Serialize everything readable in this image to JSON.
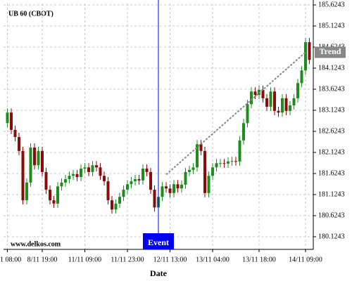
{
  "chart_data": {
    "type": "candlestick",
    "title": "UB 60 (CBOT)",
    "xlabel": "Date",
    "watermark": "www.delkos.com",
    "xlim": [
      -1,
      79
    ],
    "ylim": [
      179.8243,
      185.6576
    ],
    "xticks": [
      {
        "value": 0,
        "label": "1 08:00"
      },
      {
        "value": 9,
        "label": "8/11 19:00"
      },
      {
        "value": 20,
        "label": "11/11 09:00"
      },
      {
        "value": 31,
        "label": "11/11 23:00"
      },
      {
        "value": 42,
        "label": "12/11 13:00"
      },
      {
        "value": 53,
        "label": "13/11 04:00"
      },
      {
        "value": 65,
        "label": "13/11 18:00"
      },
      {
        "value": 77,
        "label": "14/11 09:00"
      }
    ],
    "yticks": [
      180.1243,
      180.6243,
      181.1243,
      181.6243,
      182.1243,
      182.6243,
      183.1243,
      183.6243,
      184.1243,
      184.6243,
      185.1243,
      185.6243
    ],
    "grid": true,
    "up_color": "#1e8c1e",
    "down_color": "#8b0a0a",
    "open": [
      182.82,
      183.07,
      182.66,
      182.49,
      182.16,
      180.99,
      181.41,
      182.24,
      181.82,
      182.16,
      181.66,
      181.24,
      180.99,
      180.91,
      181.32,
      181.41,
      181.49,
      181.57,
      181.61,
      181.54,
      181.74,
      181.77,
      181.66,
      181.82,
      181.77,
      181.57,
      181.44,
      180.99,
      180.77,
      180.91,
      181.07,
      181.24,
      181.37,
      181.44,
      181.49,
      181.46,
      181.74,
      181.66,
      181.24,
      180.82,
      181.07,
      181.32,
      181.27,
      181.16,
      181.37,
      181.27,
      181.36,
      181.66,
      181.71,
      181.77,
      182.32,
      182.16,
      181.16,
      181.57,
      181.77,
      181.87,
      181.87,
      181.86,
      181.91,
      181.92,
      181.91,
      182.41,
      182.82,
      183.27,
      183.57,
      183.49,
      183.61,
      183.41,
      183.21,
      183.57,
      183.11,
      183.07,
      183.41,
      183.11,
      183.24,
      183.41,
      183.77,
      184.07,
      184.74
    ],
    "high": [
      183.17,
      183.17,
      182.76,
      182.59,
      182.26,
      181.51,
      182.34,
      182.34,
      182.26,
      182.26,
      181.76,
      181.34,
      181.09,
      181.42,
      181.51,
      181.59,
      181.67,
      181.71,
      181.71,
      181.84,
      181.87,
      181.87,
      181.92,
      181.92,
      181.87,
      181.67,
      181.54,
      181.09,
      181.01,
      181.17,
      181.34,
      181.47,
      181.54,
      181.59,
      181.59,
      181.84,
      181.84,
      181.76,
      181.34,
      181.17,
      181.42,
      181.42,
      181.37,
      181.47,
      181.47,
      181.46,
      181.76,
      181.81,
      181.87,
      182.42,
      182.42,
      182.26,
      181.67,
      181.87,
      181.97,
      181.97,
      181.97,
      182.01,
      182.02,
      182.02,
      182.51,
      182.92,
      183.37,
      183.67,
      183.67,
      183.71,
      183.71,
      183.51,
      183.67,
      183.67,
      183.21,
      183.51,
      183.51,
      183.34,
      183.51,
      183.87,
      184.17,
      184.84,
      184.84
    ],
    "low": [
      182.72,
      182.56,
      182.39,
      182.06,
      180.89,
      180.89,
      181.31,
      181.72,
      181.72,
      181.56,
      181.14,
      180.89,
      180.81,
      180.81,
      181.22,
      181.31,
      181.39,
      181.47,
      181.44,
      181.44,
      181.64,
      181.56,
      181.56,
      181.67,
      181.47,
      181.34,
      180.89,
      180.67,
      180.67,
      180.81,
      180.97,
      181.14,
      181.27,
      181.34,
      181.36,
      181.36,
      181.56,
      181.14,
      180.72,
      180.72,
      180.97,
      181.17,
      181.06,
      181.06,
      181.17,
      181.17,
      181.26,
      181.56,
      181.61,
      181.67,
      182.06,
      181.06,
      181.06,
      181.47,
      181.67,
      181.77,
      181.76,
      181.76,
      181.81,
      181.81,
      181.81,
      182.31,
      182.72,
      183.17,
      183.39,
      183.39,
      183.31,
      183.11,
      183.11,
      183.01,
      182.97,
      182.97,
      183.01,
      183.01,
      183.14,
      183.31,
      183.67,
      183.97,
      184.22
    ],
    "close": [
      183.07,
      182.66,
      182.49,
      182.16,
      180.99,
      181.41,
      182.24,
      181.82,
      182.16,
      181.66,
      181.24,
      180.99,
      180.91,
      181.32,
      181.41,
      181.49,
      181.57,
      181.61,
      181.54,
      181.74,
      181.77,
      181.66,
      181.82,
      181.77,
      181.57,
      181.44,
      180.99,
      180.77,
      180.91,
      181.07,
      181.24,
      181.37,
      181.44,
      181.49,
      181.46,
      181.74,
      181.66,
      181.24,
      180.82,
      181.07,
      181.32,
      181.27,
      181.16,
      181.37,
      181.27,
      181.36,
      181.66,
      181.71,
      181.77,
      182.32,
      182.16,
      181.16,
      181.57,
      181.77,
      181.87,
      181.87,
      181.86,
      181.91,
      181.92,
      181.91,
      182.41,
      182.82,
      183.27,
      183.57,
      183.49,
      183.61,
      183.41,
      183.21,
      183.57,
      183.11,
      183.07,
      183.41,
      183.11,
      183.24,
      183.41,
      183.77,
      184.07,
      184.74,
      184.32
    ],
    "event": {
      "x": 39,
      "label": "Event",
      "color": "#0000ee"
    },
    "trend": {
      "label": "Trend",
      "x": [
        41,
        77
      ],
      "y": [
        181.6,
        184.5
      ],
      "color": "#888888"
    }
  }
}
